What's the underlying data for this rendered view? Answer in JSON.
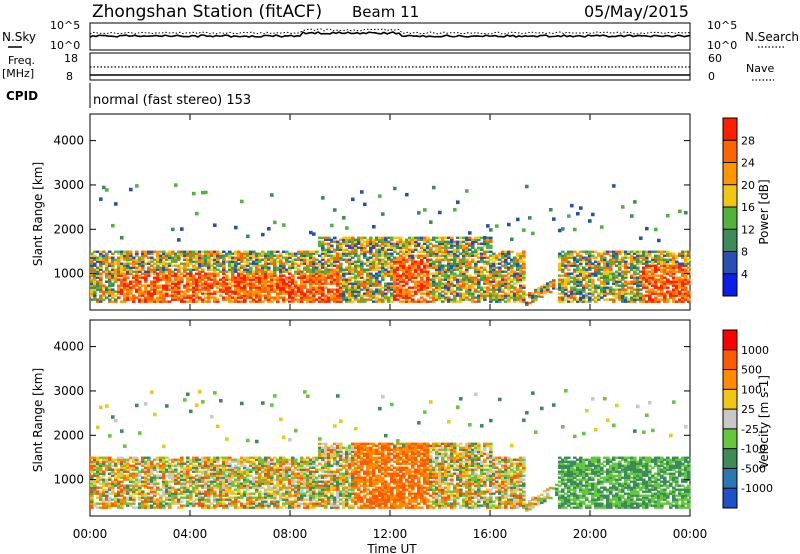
{
  "header": {
    "title": "Zhongshan Station (fitACF)",
    "beam": "Beam 11",
    "date": "05/May/2015"
  },
  "top_panels": {
    "nsky_label": "N.Sky",
    "nsky_ticks": [
      "10^5",
      "10^0"
    ],
    "nsearch_label": "N.Search",
    "nsearch_ticks": [
      "10^5",
      "10^0"
    ],
    "freq_label": "Freq.",
    "freq_unit": "[MHz]",
    "freq_ticks": [
      "18",
      "8"
    ],
    "nave_label": "Nave",
    "nave_ticks": [
      "60",
      "0"
    ],
    "cpid_label": "CPID",
    "cpid_value": "normal (fast stereo) 153"
  },
  "chart_data": [
    {
      "type": "heatmap",
      "name": "power",
      "ylabel": "Slant Range [km]",
      "ylim": [
        180,
        4600
      ],
      "yticks": [
        1000,
        2000,
        3000,
        4000
      ],
      "xlim": [
        0,
        24
      ],
      "colorbar": {
        "label": "Power [dB]",
        "ticks": [
          "4",
          "8",
          "12",
          "16",
          "20",
          "24",
          "28"
        ],
        "colors": [
          "#0a1ee6",
          "#2850b4",
          "#3c8c5a",
          "#50b43c",
          "#f0c814",
          "#ff9600",
          "#ff6400",
          "#ff1e00"
        ]
      }
    },
    {
      "type": "heatmap",
      "name": "velocity",
      "ylabel": "Slant Range [km]",
      "ylim": [
        180,
        4600
      ],
      "yticks": [
        1000,
        2000,
        3000,
        4000
      ],
      "xlim": [
        0,
        24
      ],
      "xlabel": "Time UT",
      "xticks": [
        "00:00",
        "04:00",
        "08:00",
        "12:00",
        "16:00",
        "20:00",
        "00:00"
      ],
      "colorbar": {
        "label": "Velocity [m s-1]",
        "ticks": [
          "1000",
          "500",
          "100",
          "25",
          "-25",
          "-100",
          "-500",
          "-1000"
        ],
        "colors": [
          "#1e50c8",
          "#2878b4",
          "#3c8c5a",
          "#64c83c",
          "#c8c8c8",
          "#f0c814",
          "#ff8c00",
          "#ff5a00",
          "#ff0000"
        ]
      }
    }
  ]
}
